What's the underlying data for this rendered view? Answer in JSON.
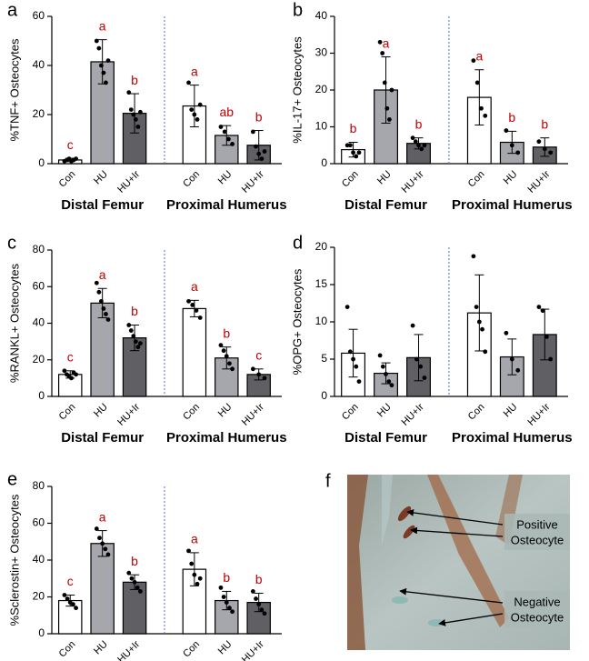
{
  "chart_data": [
    {
      "type": "bar",
      "panel": "a",
      "y_label": "%TNF+ Osteocytes",
      "categories": [
        "Con",
        "HU",
        "HU+Ir",
        "Con",
        "HU",
        "HU+Ir"
      ],
      "groups": [
        "Distal Femur",
        "Proximal Humerus"
      ],
      "values": [
        1.5,
        41.5,
        20.5,
        23.5,
        11.5,
        7.5
      ],
      "errors": [
        0.7,
        9,
        8,
        8.5,
        4,
        6
      ],
      "letters": [
        "c",
        "a",
        "b",
        "a",
        "ab",
        "b"
      ],
      "points": [
        [
          1,
          1.5,
          2,
          1,
          1.5,
          2
        ],
        [
          50,
          47,
          40,
          37,
          33,
          42
        ],
        [
          29,
          22,
          20,
          18,
          15,
          21
        ],
        [
          33,
          22,
          20,
          18,
          24
        ],
        [
          15,
          13,
          10,
          8
        ],
        [
          13,
          7,
          4,
          2,
          5
        ]
      ],
      "colors": [
        "#ffffff",
        "#a6a6ad",
        "#606064",
        "#ffffff",
        "#a6a6ad",
        "#606064"
      ],
      "ylim": [
        0,
        60
      ],
      "yticks": [
        0,
        20,
        40,
        60
      ]
    },
    {
      "type": "bar",
      "panel": "b",
      "y_label": "%IL-17+ Osteocytes",
      "categories": [
        "Con",
        "HU",
        "HU+Ir",
        "Con",
        "HU",
        "HU+Ir"
      ],
      "groups": [
        "Distal Femur",
        "Proximal Humerus"
      ],
      "values": [
        3.8,
        20,
        5.5,
        18,
        5.8,
        4.5
      ],
      "errors": [
        2,
        9,
        1.5,
        7.5,
        3,
        2.5
      ],
      "letters": [
        "b",
        "a",
        "b",
        "a",
        "b",
        "b"
      ],
      "points": [
        [
          5,
          5,
          3,
          2,
          3
        ],
        [
          33,
          30,
          22,
          15,
          12,
          20
        ],
        [
          7,
          6,
          5,
          4,
          5
        ],
        [
          28,
          22,
          15,
          13
        ],
        [
          9,
          5,
          3
        ],
        [
          6,
          4,
          3
        ]
      ],
      "colors": [
        "#ffffff",
        "#a6a6ad",
        "#606064",
        "#ffffff",
        "#a6a6ad",
        "#606064"
      ],
      "ylim": [
        0,
        40
      ],
      "yticks": [
        0,
        10,
        20,
        30,
        40
      ]
    },
    {
      "type": "bar",
      "panel": "c",
      "y_label": "%RANKL+ Osteocytes",
      "categories": [
        "Con",
        "HU",
        "HU+Ir",
        "Con",
        "HU",
        "HU+Ir"
      ],
      "groups": [
        "Distal Femur",
        "Proximal Humerus"
      ],
      "values": [
        12,
        51,
        32,
        48,
        21,
        12
      ],
      "errors": [
        2,
        8,
        7,
        4.5,
        6,
        3
      ],
      "letters": [
        "c",
        "a",
        "b",
        "a",
        "b",
        "c"
      ],
      "points": [
        [
          14,
          12,
          11,
          10,
          13,
          12
        ],
        [
          62,
          57,
          52,
          48,
          45,
          42
        ],
        [
          39,
          36,
          33,
          30,
          27,
          29
        ],
        [
          52,
          50,
          47,
          43
        ],
        [
          28,
          25,
          22,
          18,
          15
        ],
        [
          15,
          12,
          10
        ]
      ],
      "colors": [
        "#ffffff",
        "#a6a6ad",
        "#606064",
        "#ffffff",
        "#a6a6ad",
        "#606064"
      ],
      "ylim": [
        0,
        80
      ],
      "yticks": [
        0,
        20,
        40,
        60,
        80
      ]
    },
    {
      "type": "bar",
      "panel": "d",
      "y_label": "%OPG+ Osteocytes",
      "categories": [
        "Con",
        "HU",
        "HU+Ir",
        "Con",
        "HU",
        "HU+Ir"
      ],
      "groups": [
        "Distal Femur",
        "Proximal Humerus"
      ],
      "values": [
        5.8,
        3.1,
        5.2,
        11.2,
        5.3,
        8.3
      ],
      "errors": [
        3.2,
        1.4,
        3.1,
        5.1,
        2.4,
        3.4
      ],
      "points": [
        [
          12,
          6,
          5,
          4,
          2
        ],
        [
          5.5,
          4,
          3,
          2,
          1.5
        ],
        [
          9.5,
          5,
          4,
          2.5
        ],
        [
          18.8,
          12,
          10,
          9,
          6
        ],
        [
          8.5,
          5,
          3.5
        ],
        [
          12,
          11.5,
          8,
          5
        ]
      ],
      "colors": [
        "#ffffff",
        "#a6a6ad",
        "#606064",
        "#ffffff",
        "#a6a6ad",
        "#606064"
      ],
      "ylim": [
        0,
        20
      ],
      "yticks": [
        0,
        5,
        10,
        15,
        20
      ]
    },
    {
      "type": "bar",
      "panel": "e",
      "y_label": "%Sclerostin+ Osteocytes",
      "categories": [
        "Con",
        "HU",
        "HU+Ir",
        "Con",
        "HU",
        "HU+Ir"
      ],
      "groups": [
        "Distal Femur",
        "Proximal Humerus"
      ],
      "values": [
        18,
        49,
        28,
        35,
        18,
        17
      ],
      "errors": [
        3,
        7,
        4,
        9,
        5,
        5
      ],
      "letters": [
        "c",
        "a",
        "b",
        "a",
        "b",
        "b"
      ],
      "points": [
        [
          21,
          19,
          17,
          16,
          14
        ],
        [
          57,
          52,
          49,
          46,
          43
        ],
        [
          33,
          30,
          28,
          25,
          23
        ],
        [
          45,
          38,
          32,
          27,
          30
        ],
        [
          25,
          20,
          17,
          14,
          12
        ],
        [
          23,
          19,
          16,
          13,
          11
        ]
      ],
      "colors": [
        "#ffffff",
        "#a6a6ad",
        "#606064",
        "#ffffff",
        "#a6a6ad",
        "#606064"
      ],
      "ylim": [
        0,
        80
      ],
      "yticks": [
        0,
        20,
        40,
        60,
        80
      ]
    }
  ],
  "image_panel": {
    "label": "f",
    "annotations": [
      [
        "Positive",
        "Osteocyte"
      ],
      [
        "Negative",
        "Osteocyte"
      ]
    ]
  }
}
